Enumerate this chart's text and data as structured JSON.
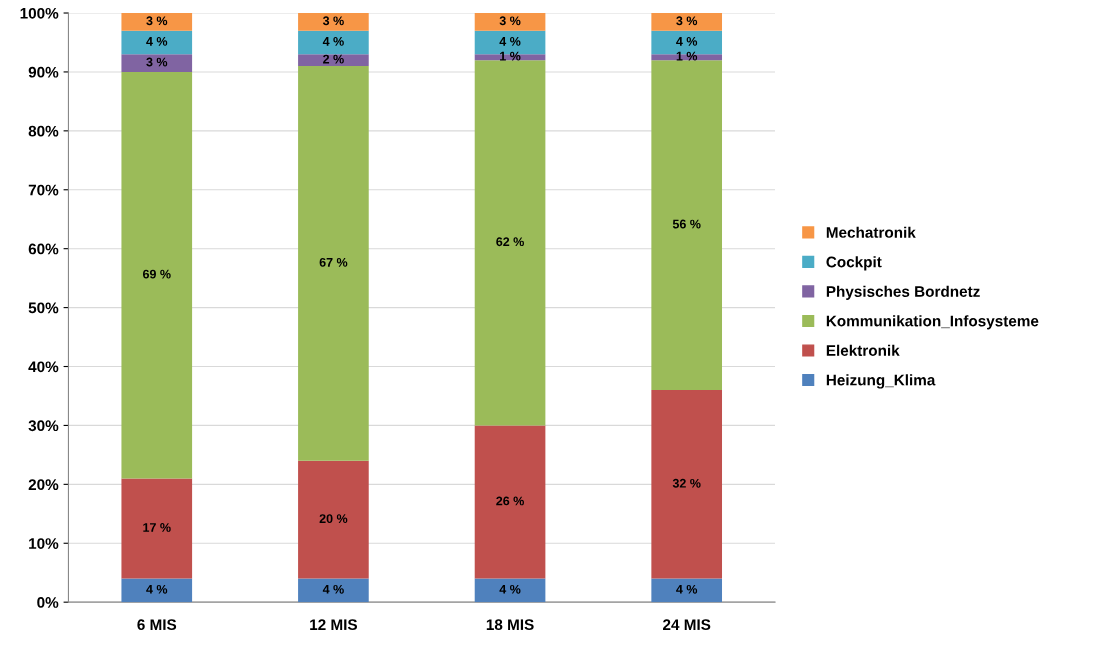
{
  "chart_data": {
    "type": "bar",
    "stacked": true,
    "categories": [
      "6 MIS",
      "12 MIS",
      "18 MIS",
      "24 MIS"
    ],
    "series": [
      {
        "name": "Heizung_Klima",
        "color": "#4f81bd",
        "values": [
          4,
          4,
          4,
          4
        ],
        "value_labels": [
          "4 %",
          "4 %",
          "4 %",
          "4 %"
        ]
      },
      {
        "name": "Elektronik",
        "color": "#c0504d",
        "values": [
          17,
          20,
          26,
          32
        ],
        "value_labels": [
          "17 %",
          "20 %",
          "26 %",
          "32 %"
        ]
      },
      {
        "name": "Kommunikation_Infosysteme",
        "color": "#9bbb59",
        "values": [
          69,
          67,
          62,
          56
        ],
        "value_labels": [
          "69 %",
          "67 %",
          "62 %",
          "56 %"
        ]
      },
      {
        "name": "Physisches Bordnetz",
        "color": "#8064a2",
        "values": [
          3,
          2,
          1,
          1
        ],
        "value_labels": [
          "3 %",
          "2 %",
          "1 %",
          "1 %"
        ]
      },
      {
        "name": "Cockpit",
        "color": "#4bacc6",
        "values": [
          4,
          4,
          4,
          4
        ],
        "value_labels": [
          "4 %",
          "4 %",
          "4 %",
          "4 %"
        ]
      },
      {
        "name": "Mechatronik",
        "color": "#f79646",
        "values": [
          3,
          3,
          3,
          3
        ],
        "value_labels": [
          "3 %",
          "3 %",
          "3 %",
          "3 %"
        ]
      }
    ],
    "ylim": [
      0,
      100
    ],
    "yticks": [
      {
        "value": 0,
        "label": "0%"
      },
      {
        "value": 10,
        "label": "10%"
      },
      {
        "value": 20,
        "label": "20%"
      },
      {
        "value": 30,
        "label": "30%"
      },
      {
        "value": 40,
        "label": "40%"
      },
      {
        "value": 50,
        "label": "50%"
      },
      {
        "value": 60,
        "label": "60%"
      },
      {
        "value": 70,
        "label": "70%"
      },
      {
        "value": 80,
        "label": "80%"
      },
      {
        "value": 90,
        "label": "90%"
      },
      {
        "value": 100,
        "label": "100%"
      }
    ],
    "grid": "y",
    "legend": "right"
  }
}
